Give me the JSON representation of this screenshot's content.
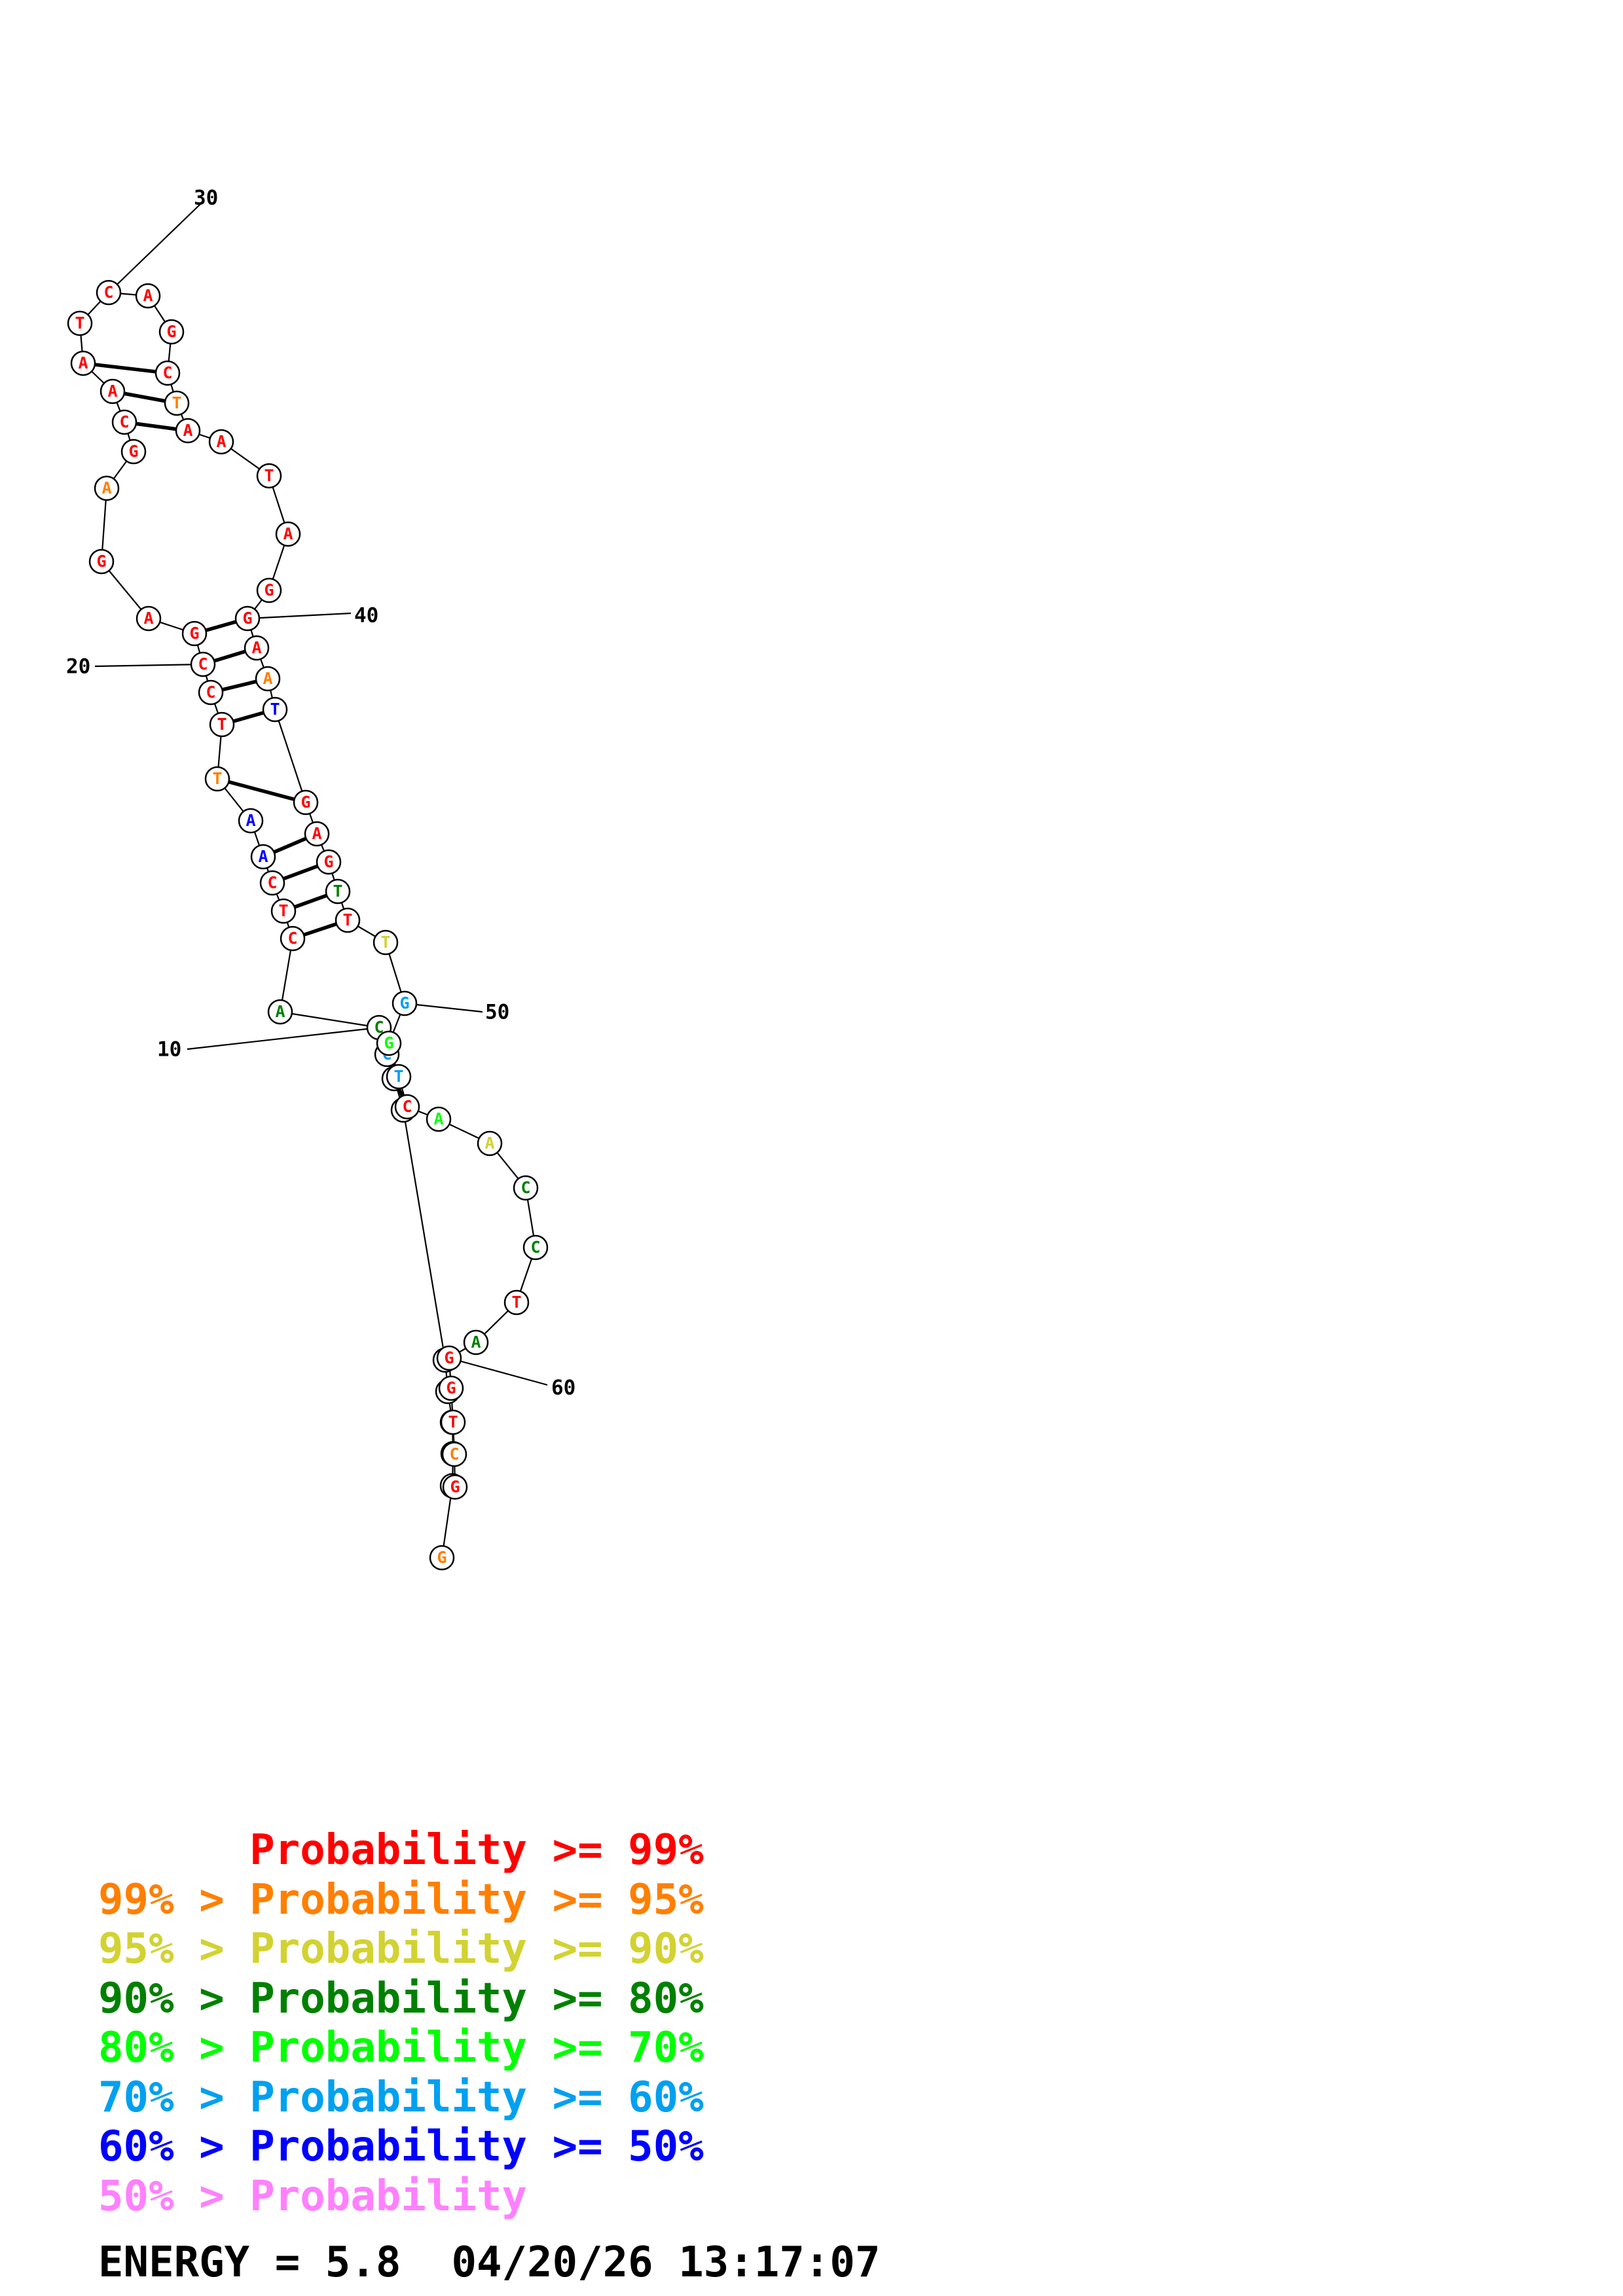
{
  "colors": {
    "p99": "#ff0000",
    "p95": "#ff7f00",
    "p90": "#d2d232",
    "p80": "#008000",
    "p70": "#00ff00",
    "p60": "#00a0f0",
    "p50": "#0000ff",
    "p0": "#ff80ff"
  },
  "sequence": [
    {
      "base": "G",
      "c": "p95"
    },
    {
      "base": "A",
      "c": "p99"
    },
    {
      "base": "C",
      "c": "p99"
    },
    {
      "base": "C",
      "c": "p99"
    },
    {
      "base": "T",
      "c": "p80"
    },
    {
      "base": "T",
      "c": "p70"
    },
    {
      "base": "A",
      "c": "p60"
    },
    {
      "base": "C",
      "c": "p70"
    },
    {
      "base": "C",
      "c": "p60"
    },
    {
      "base": "C",
      "c": "p80"
    },
    {
      "base": "A",
      "c": "p80"
    },
    {
      "base": "C",
      "c": "p99"
    },
    {
      "base": "T",
      "c": "p99"
    },
    {
      "base": "C",
      "c": "p99"
    },
    {
      "base": "A",
      "c": "p50"
    },
    {
      "base": "A",
      "c": "p50"
    },
    {
      "base": "T",
      "c": "p95"
    },
    {
      "base": "T",
      "c": "p99"
    },
    {
      "base": "C",
      "c": "p99"
    },
    {
      "base": "C",
      "c": "p99"
    },
    {
      "base": "G",
      "c": "p99"
    },
    {
      "base": "A",
      "c": "p99"
    },
    {
      "base": "G",
      "c": "p99"
    },
    {
      "base": "A",
      "c": "p95"
    },
    {
      "base": "G",
      "c": "p99"
    },
    {
      "base": "C",
      "c": "p99"
    },
    {
      "base": "A",
      "c": "p99"
    },
    {
      "base": "A",
      "c": "p99"
    },
    {
      "base": "T",
      "c": "p99"
    },
    {
      "base": "C",
      "c": "p99"
    },
    {
      "base": "A",
      "c": "p99"
    },
    {
      "base": "G",
      "c": "p99"
    },
    {
      "base": "C",
      "c": "p99"
    },
    {
      "base": "T",
      "c": "p95"
    },
    {
      "base": "A",
      "c": "p99"
    },
    {
      "base": "A",
      "c": "p99"
    },
    {
      "base": "T",
      "c": "p99"
    },
    {
      "base": "A",
      "c": "p99"
    },
    {
      "base": "G",
      "c": "p99"
    },
    {
      "base": "G",
      "c": "p99"
    },
    {
      "base": "A",
      "c": "p99"
    },
    {
      "base": "A",
      "c": "p95"
    },
    {
      "base": "T",
      "c": "p50"
    },
    {
      "base": "G",
      "c": "p99"
    },
    {
      "base": "A",
      "c": "p99"
    },
    {
      "base": "G",
      "c": "p99"
    },
    {
      "base": "T",
      "c": "p80"
    },
    {
      "base": "T",
      "c": "p99"
    },
    {
      "base": "T",
      "c": "p90"
    },
    {
      "base": "G",
      "c": "p60"
    },
    {
      "base": "G",
      "c": "p70"
    },
    {
      "base": "T",
      "c": "p60"
    },
    {
      "base": "C",
      "c": "p99"
    },
    {
      "base": "A",
      "c": "p70"
    },
    {
      "base": "A",
      "c": "p90"
    },
    {
      "base": "C",
      "c": "p80"
    },
    {
      "base": "C",
      "c": "p80"
    },
    {
      "base": "T",
      "c": "p99"
    },
    {
      "base": "A",
      "c": "p80"
    },
    {
      "base": "G",
      "c": "p99"
    },
    {
      "base": "G",
      "c": "p99"
    },
    {
      "base": "T",
      "c": "p99"
    },
    {
      "base": "C",
      "c": "p95"
    },
    {
      "base": "G",
      "c": "p99"
    }
  ],
  "pairs": [
    [
      1,
      63
    ],
    [
      2,
      62
    ],
    [
      3,
      61
    ],
    [
      4,
      60
    ],
    [
      5,
      59
    ],
    [
      7,
      52
    ],
    [
      8,
      51
    ],
    [
      9,
      50
    ],
    [
      11,
      47
    ],
    [
      12,
      46
    ],
    [
      13,
      45
    ],
    [
      14,
      44
    ],
    [
      16,
      43
    ],
    [
      17,
      42
    ],
    [
      18,
      41
    ],
    [
      19,
      40
    ],
    [
      20,
      39
    ],
    [
      25,
      34
    ],
    [
      26,
      33
    ],
    [
      27,
      32
    ]
  ],
  "tick_labels": [
    {
      "index": 10,
      "text": "10"
    },
    {
      "index": 20,
      "text": "20"
    },
    {
      "index": 30,
      "text": "30"
    },
    {
      "index": 40,
      "text": "40"
    },
    {
      "index": 50,
      "text": "50"
    },
    {
      "index": 60,
      "text": "60"
    }
  ],
  "legend": [
    {
      "text": "      Probability >= 99%",
      "c": "p99"
    },
    {
      "text": "99% > Probability >= 95%",
      "c": "p95"
    },
    {
      "text": "95% > Probability >= 90%",
      "c": "p90"
    },
    {
      "text": "90% > Probability >= 80%",
      "c": "p80"
    },
    {
      "text": "80% > Probability >= 70%",
      "c": "p70"
    },
    {
      "text": "70% > Probability >= 60%",
      "c": "p60"
    },
    {
      "text": "60% > Probability >= 50%",
      "c": "p50"
    },
    {
      "text": "50% > Probability",
      "c": "p0"
    }
  ],
  "energy_line": "ENERGY = 5.8  04/20/26 13:17:07"
}
